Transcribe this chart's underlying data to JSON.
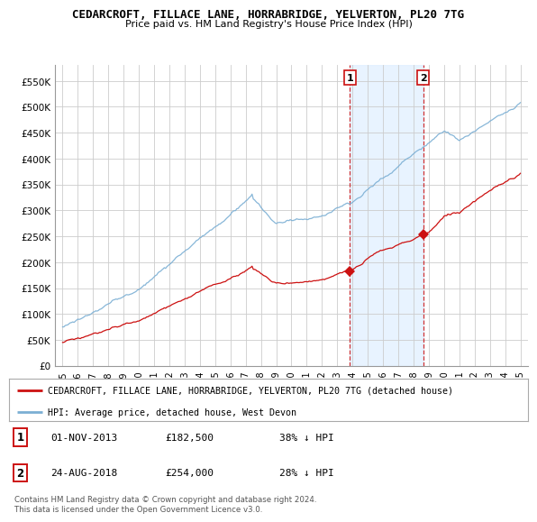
{
  "title": "CEDARCROFT, FILLACE LANE, HORRABRIDGE, YELVERTON, PL20 7TG",
  "subtitle": "Price paid vs. HM Land Registry's House Price Index (HPI)",
  "ylabel_ticks": [
    "£0",
    "£50K",
    "£100K",
    "£150K",
    "£200K",
    "£250K",
    "£300K",
    "£350K",
    "£400K",
    "£450K",
    "£500K",
    "£550K"
  ],
  "ytick_values": [
    0,
    50000,
    100000,
    150000,
    200000,
    250000,
    300000,
    350000,
    400000,
    450000,
    500000,
    550000
  ],
  "ylim": [
    0,
    580000
  ],
  "background_color": "#ffffff",
  "plot_bg_color": "#ffffff",
  "grid_color": "#cccccc",
  "hpi_color": "#7bafd4",
  "property_color": "#cc1111",
  "sale1_x": 2013.83,
  "sale1_y": 182500,
  "sale1_label": "1",
  "sale2_x": 2018.64,
  "sale2_y": 254000,
  "sale2_label": "2",
  "vline_color": "#cc1111",
  "shade_color": "#ddeeff",
  "xlim_start": 1994.5,
  "xlim_end": 2025.5,
  "xtick_years": [
    1995,
    1996,
    1997,
    1998,
    1999,
    2000,
    2001,
    2002,
    2003,
    2004,
    2005,
    2006,
    2007,
    2008,
    2009,
    2010,
    2011,
    2012,
    2013,
    2014,
    2015,
    2016,
    2017,
    2018,
    2019,
    2020,
    2021,
    2022,
    2023,
    2024,
    2025
  ],
  "legend_property": "CEDARCROFT, FILLACE LANE, HORRABRIDGE, YELVERTON, PL20 7TG (detached house)",
  "legend_hpi": "HPI: Average price, detached house, West Devon",
  "table_rows": [
    {
      "num": "1",
      "date": "01-NOV-2013",
      "price": "£182,500",
      "change": "38% ↓ HPI"
    },
    {
      "num": "2",
      "date": "24-AUG-2018",
      "price": "£254,000",
      "change": "28% ↓ HPI"
    }
  ],
  "footnote": "Contains HM Land Registry data © Crown copyright and database right 2024.\nThis data is licensed under the Open Government Licence v3.0."
}
